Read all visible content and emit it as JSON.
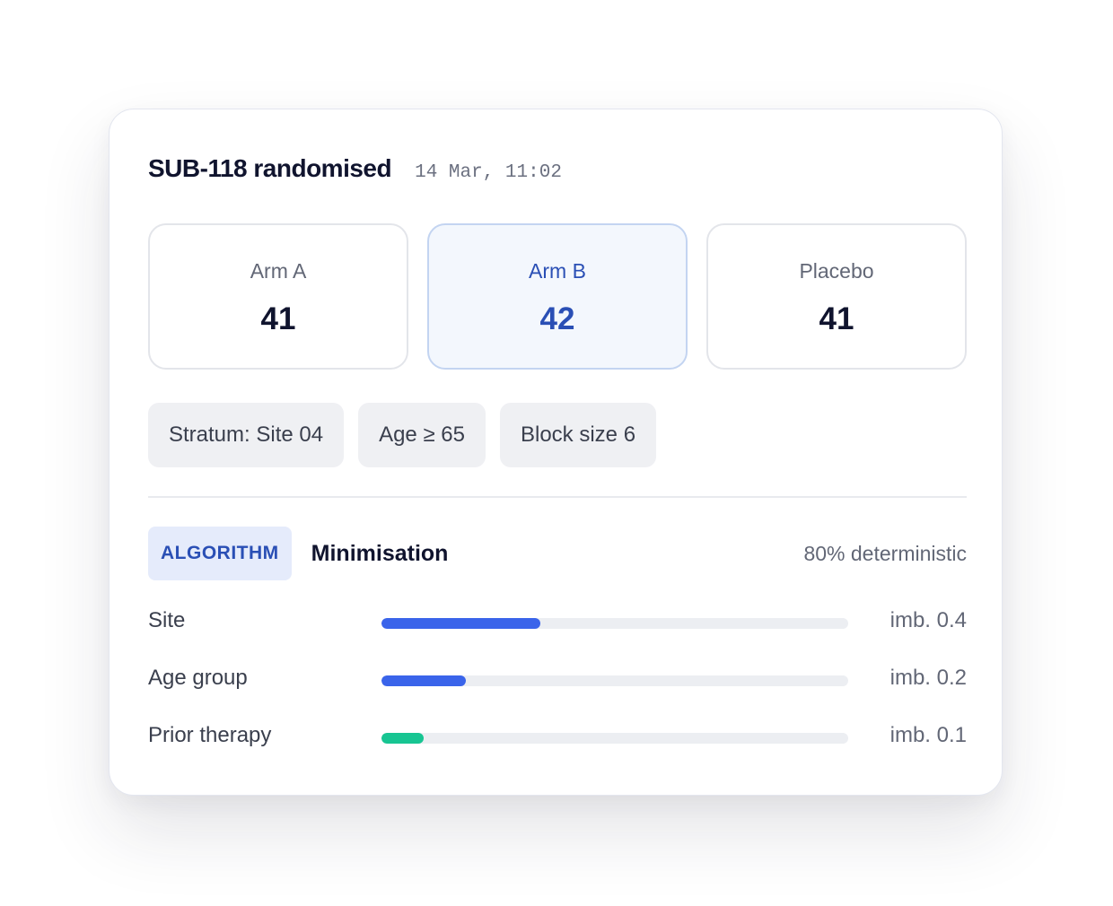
{
  "header": {
    "title": "SUB-118 randomised",
    "timestamp": "14 Mar, 11:02"
  },
  "arms": [
    {
      "label": "Arm A",
      "count": "41",
      "selected": false
    },
    {
      "label": "Arm B",
      "count": "42",
      "selected": true
    },
    {
      "label": "Placebo",
      "count": "41",
      "selected": false
    }
  ],
  "tags": [
    "Stratum: Site 04",
    "Age ≥ 65",
    "Block size 6"
  ],
  "algorithm": {
    "badge": "ALGORITHM",
    "name": "Minimisation",
    "determinism": "80% deterministic"
  },
  "factors": [
    {
      "label": "Site",
      "value": "imb. 0.4",
      "fill_fraction": 0.34,
      "color": "#3a64ea"
    },
    {
      "label": "Age group",
      "value": "imb. 0.2",
      "fill_fraction": 0.18,
      "color": "#3a64ea"
    },
    {
      "label": "Prior therapy",
      "value": "imb. 0.1",
      "fill_fraction": 0.09,
      "color": "#17c592"
    }
  ],
  "colors": {
    "accent": "#2a4fb5",
    "bar_blue": "#3a64ea",
    "bar_green": "#17c592"
  }
}
